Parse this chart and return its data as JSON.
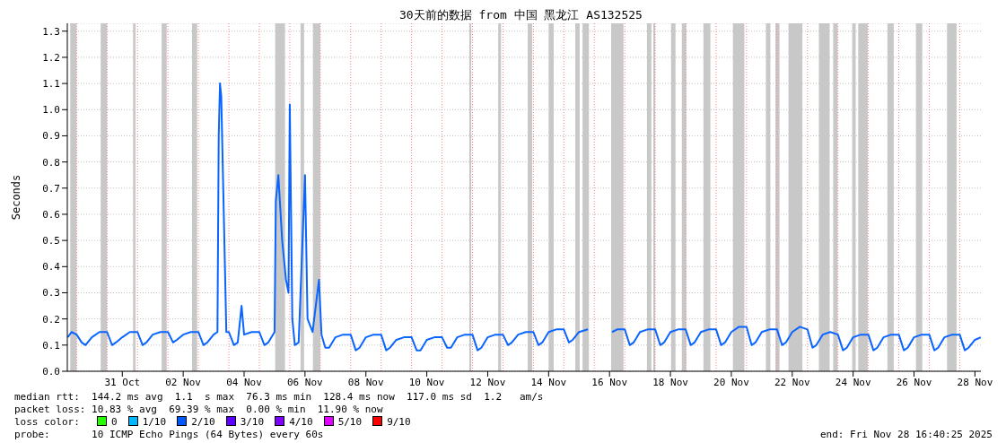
{
  "chart_data": {
    "type": "line",
    "title": "30天前的数据 from 中国 黑龙江 AS132525",
    "ylabel": "Seconds",
    "xlim": [
      "2025-10-29T16:40",
      "2025-11-28T16:40"
    ],
    "xticks": [
      {
        "value": "2025-10-31T12:00",
        "label": "31 Oct"
      },
      {
        "value": "2025-11-02T12:00",
        "label": "02 Nov"
      },
      {
        "value": "2025-11-04T12:00",
        "label": "04 Nov"
      },
      {
        "value": "2025-11-06T12:00",
        "label": "06 Nov"
      },
      {
        "value": "2025-11-08T12:00",
        "label": "08 Nov"
      },
      {
        "value": "2025-11-10T12:00",
        "label": "10 Nov"
      },
      {
        "value": "2025-11-12T12:00",
        "label": "12 Nov"
      },
      {
        "value": "2025-11-14T12:00",
        "label": "14 Nov"
      },
      {
        "value": "2025-11-16T12:00",
        "label": "16 Nov"
      },
      {
        "value": "2025-11-18T12:00",
        "label": "18 Nov"
      },
      {
        "value": "2025-11-20T12:00",
        "label": "20 Nov"
      },
      {
        "value": "2025-11-22T12:00",
        "label": "22 Nov"
      },
      {
        "value": "2025-11-24T12:00",
        "label": "24 Nov"
      },
      {
        "value": "2025-11-26T12:00",
        "label": "26 Nov"
      },
      {
        "value": "2025-11-28T12:00",
        "label": "28 Nov"
      }
    ],
    "ylim": [
      0,
      1.33
    ],
    "yticks": [
      {
        "value": 0,
        "label": "0.0"
      },
      {
        "value": 0.1,
        "label": "0.1"
      },
      {
        "value": 0.2,
        "label": "0.2"
      },
      {
        "value": 0.3,
        "label": "0.3"
      },
      {
        "value": 0.4,
        "label": "0.4"
      },
      {
        "value": 0.5,
        "label": "0.5"
      },
      {
        "value": 0.6,
        "label": "0.6"
      },
      {
        "value": 0.7,
        "label": "0.7"
      },
      {
        "value": 0.8,
        "label": "0.8"
      },
      {
        "value": 0.9,
        "label": "0.9"
      },
      {
        "value": 1.0,
        "label": "1.0"
      },
      {
        "value": 1.1,
        "label": "1.1"
      },
      {
        "value": 1.2,
        "label": "1.2"
      },
      {
        "value": 1.3,
        "label": "1.3"
      }
    ],
    "grid": "y",
    "series": [
      {
        "color": "#0a64ff",
        "x": [
          "2025-10-29T17:00",
          "2025-10-29T20:00",
          "2025-10-30T00:00",
          "2025-10-30T04:00",
          "2025-10-30T07:00",
          "2025-10-30T12:00",
          "2025-10-30T18:00",
          "2025-10-31T00:00",
          "2025-10-31T04:00",
          "2025-10-31T07:00",
          "2025-10-31T12:00",
          "2025-10-31T18:00",
          "2025-11-01T00:00",
          "2025-11-01T04:00",
          "2025-11-01T07:00",
          "2025-11-01T12:00",
          "2025-11-01T18:00",
          "2025-11-02T00:00",
          "2025-11-02T04:00",
          "2025-11-02T07:00",
          "2025-11-02T12:00",
          "2025-11-02T18:00",
          "2025-11-03T00:00",
          "2025-11-03T04:00",
          "2025-11-03T07:00",
          "2025-11-03T12:00",
          "2025-11-03T15:00",
          "2025-11-03T16:00",
          "2025-11-03T17:00",
          "2025-11-03T18:00",
          "2025-11-03T20:00",
          "2025-11-03T22:00",
          "2025-11-04T00:00",
          "2025-11-04T04:00",
          "2025-11-04T07:00",
          "2025-11-04T10:00",
          "2025-11-04T12:00",
          "2025-11-04T18:00",
          "2025-11-05T00:00",
          "2025-11-05T04:00",
          "2025-11-05T07:00",
          "2025-11-05T12:00",
          "2025-11-05T13:00",
          "2025-11-05T15:00",
          "2025-11-05T18:00",
          "2025-11-05T21:00",
          "2025-11-05T23:00",
          "2025-11-06T00:00",
          "2025-11-06T02:00",
          "2025-11-06T04:00",
          "2025-11-06T07:00",
          "2025-11-06T12:00",
          "2025-11-06T14:00",
          "2025-11-06T18:00",
          "2025-11-06T23:00",
          "2025-11-07T01:00",
          "2025-11-07T04:00",
          "2025-11-07T07:00",
          "2025-11-07T12:00",
          "2025-11-07T18:00",
          "2025-11-08T00:00",
          "2025-11-08T04:00",
          "2025-11-08T07:00",
          "2025-11-08T12:00",
          "2025-11-08T18:00",
          "2025-11-09T00:00",
          "2025-11-09T04:00",
          "2025-11-09T07:00",
          "2025-11-09T12:00",
          "2025-11-09T18:00",
          "2025-11-10T00:00",
          "2025-11-10T04:00",
          "2025-11-10T07:00",
          "2025-11-10T12:00",
          "2025-11-10T18:00",
          "2025-11-11T00:00",
          "2025-11-11T04:00",
          "2025-11-11T07:00",
          "2025-11-11T12:00",
          "2025-11-11T18:00",
          "2025-11-12T00:00",
          "2025-11-12T04:00",
          "2025-11-12T07:00",
          "2025-11-12T12:00",
          "2025-11-12T18:00",
          "2025-11-13T00:00",
          "2025-11-13T04:00",
          "2025-11-13T07:00",
          "2025-11-13T12:00",
          "2025-11-13T18:00",
          "2025-11-14T00:00",
          "2025-11-14T04:00",
          "2025-11-14T07:00",
          "2025-11-14T12:00",
          "2025-11-14T18:00",
          "2025-11-15T00:00",
          "2025-11-15T04:00",
          "2025-11-15T07:00",
          "2025-11-15T12:00",
          "2025-11-15T19:00",
          "2025-11-16T00:00",
          "2025-11-16T14:00",
          "2025-11-16T18:00",
          "2025-11-17T00:00",
          "2025-11-17T04:00",
          "2025-11-17T07:00",
          "2025-11-17T12:00",
          "2025-11-17T18:00",
          "2025-11-18T00:00",
          "2025-11-18T04:00",
          "2025-11-18T07:00",
          "2025-11-18T12:00",
          "2025-11-18T18:00",
          "2025-11-19T00:00",
          "2025-11-19T04:00",
          "2025-11-19T07:00",
          "2025-11-19T12:00",
          "2025-11-19T18:00",
          "2025-11-20T00:00",
          "2025-11-20T04:00",
          "2025-11-20T07:00",
          "2025-11-20T12:00",
          "2025-11-20T18:00",
          "2025-11-21T00:00",
          "2025-11-21T04:00",
          "2025-11-21T07:00",
          "2025-11-21T12:00",
          "2025-11-21T18:00",
          "2025-11-22T00:00",
          "2025-11-22T04:00",
          "2025-11-22T07:00",
          "2025-11-22T12:00",
          "2025-11-22T18:00",
          "2025-11-23T00:00",
          "2025-11-23T04:00",
          "2025-11-23T07:00",
          "2025-11-23T12:00",
          "2025-11-23T18:00",
          "2025-11-24T00:00",
          "2025-11-24T04:00",
          "2025-11-24T07:00",
          "2025-11-24T12:00",
          "2025-11-24T18:00",
          "2025-11-25T00:00",
          "2025-11-25T04:00",
          "2025-11-25T07:00",
          "2025-11-25T12:00",
          "2025-11-25T18:00",
          "2025-11-26T00:00",
          "2025-11-26T04:00",
          "2025-11-26T07:00",
          "2025-11-26T12:00",
          "2025-11-26T18:00",
          "2025-11-27T00:00",
          "2025-11-27T04:00",
          "2025-11-27T07:00",
          "2025-11-27T12:00",
          "2025-11-27T18:00",
          "2025-11-28T00:00",
          "2025-11-28T04:00",
          "2025-11-28T07:00",
          "2025-11-28T12:00",
          "2025-11-28T16:40"
        ],
        "values": [
          0.13,
          0.15,
          0.14,
          0.11,
          0.1,
          0.13,
          0.15,
          0.15,
          0.1,
          0.11,
          0.13,
          0.15,
          0.15,
          0.1,
          0.11,
          0.14,
          0.15,
          0.15,
          0.11,
          0.12,
          0.14,
          0.15,
          0.15,
          0.1,
          0.11,
          0.14,
          0.15,
          0.9,
          1.1,
          1.05,
          0.6,
          0.15,
          0.15,
          0.1,
          0.11,
          0.25,
          0.14,
          0.15,
          0.15,
          0.1,
          0.11,
          0.15,
          0.65,
          0.75,
          0.5,
          0.35,
          0.3,
          1.02,
          0.2,
          0.1,
          0.11,
          0.75,
          0.2,
          0.15,
          0.35,
          0.14,
          0.09,
          0.09,
          0.13,
          0.14,
          0.14,
          0.08,
          0.09,
          0.13,
          0.14,
          0.14,
          0.08,
          0.09,
          0.12,
          0.13,
          0.13,
          0.08,
          0.08,
          0.12,
          0.13,
          0.13,
          0.09,
          0.09,
          0.13,
          0.14,
          0.14,
          0.08,
          0.09,
          0.13,
          0.14,
          0.14,
          0.1,
          0.11,
          0.14,
          0.15,
          0.15,
          0.1,
          0.11,
          0.15,
          0.16,
          0.16,
          0.11,
          0.12,
          0.15,
          0.16,
          null,
          0.15,
          0.16,
          0.16,
          0.1,
          0.11,
          0.15,
          0.16,
          0.16,
          0.1,
          0.11,
          0.15,
          0.16,
          0.16,
          0.1,
          0.11,
          0.15,
          0.16,
          0.16,
          0.1,
          0.11,
          0.15,
          0.17,
          0.17,
          0.1,
          0.11,
          0.15,
          0.16,
          0.16,
          0.1,
          0.11,
          0.15,
          0.17,
          0.16,
          0.09,
          0.1,
          0.14,
          0.15,
          0.14,
          0.08,
          0.09,
          0.13,
          0.14,
          0.14,
          0.08,
          0.09,
          0.13,
          0.14,
          0.14,
          0.08,
          0.09,
          0.13,
          0.14,
          0.14,
          0.08,
          0.09,
          0.13,
          0.14,
          0.14,
          0.08,
          0.09,
          0.12,
          0.13
        ]
      }
    ],
    "bands": [
      {
        "axis": "x",
        "from": "2025-10-29T19:00",
        "to": "2025-10-30T00:00",
        "color": "#c8c8c8"
      },
      {
        "axis": "x",
        "from": "2025-10-30T19:00",
        "to": "2025-10-31T00:00",
        "color": "#c8c8c8"
      },
      {
        "axis": "x",
        "from": "2025-10-31T20:30",
        "to": "2025-10-31T22:30",
        "color": "#c8c8c8"
      },
      {
        "axis": "x",
        "from": "2025-11-01T19:00",
        "to": "2025-11-01T23:00",
        "color": "#c8c8c8"
      },
      {
        "axis": "x",
        "from": "2025-11-02T19:00",
        "to": "2025-11-02T23:00",
        "color": "#c8c8c8"
      },
      {
        "axis": "x",
        "from": "2025-11-05T12:30",
        "to": "2025-11-05T20:15",
        "color": "#c8c8c8"
      },
      {
        "axis": "x",
        "from": "2025-11-06T08:30",
        "to": "2025-11-06T11:15",
        "color": "#c8c8c8"
      },
      {
        "axis": "x",
        "from": "2025-11-06T18:15",
        "to": "2025-11-07T00:00",
        "color": "#c8c8c8"
      },
      {
        "axis": "x",
        "from": "2025-11-11T21:30",
        "to": "2025-11-11T23:00",
        "color": "#c8c8c8"
      },
      {
        "axis": "x",
        "from": "2025-11-12T20:15",
        "to": "2025-11-12T22:30",
        "color": "#c8c8c8"
      },
      {
        "axis": "x",
        "from": "2025-11-13T19:30",
        "to": "2025-11-13T23:00",
        "color": "#c8c8c8"
      },
      {
        "axis": "x",
        "from": "2025-11-14T12:00",
        "to": "2025-11-14T16:00",
        "color": "#c8c8c8"
      },
      {
        "axis": "x",
        "from": "2025-11-15T09:00",
        "to": "2025-11-15T12:30",
        "color": "#c8c8c8"
      },
      {
        "axis": "x",
        "from": "2025-11-15T14:45",
        "to": "2025-11-15T19:45",
        "color": "#c8c8c8"
      },
      {
        "axis": "x",
        "from": "2025-11-16T13:15",
        "to": "2025-11-16T23:00",
        "color": "#c8c8c8"
      },
      {
        "axis": "x",
        "from": "2025-11-17T17:30",
        "to": "2025-11-17T21:00",
        "color": "#c8c8c8"
      },
      {
        "axis": "x",
        "from": "2025-11-17T22:30",
        "to": "2025-11-18T00:00",
        "color": "#c8c8c8"
      },
      {
        "axis": "x",
        "from": "2025-11-18T12:30",
        "to": "2025-11-18T16:00",
        "color": "#c8c8c8"
      },
      {
        "axis": "x",
        "from": "2025-11-18T21:00",
        "to": "2025-11-19T00:30",
        "color": "#c8c8c8"
      },
      {
        "axis": "x",
        "from": "2025-11-19T14:00",
        "to": "2025-11-19T19:30",
        "color": "#c8c8c8"
      },
      {
        "axis": "x",
        "from": "2025-11-20T13:15",
        "to": "2025-11-20T22:15",
        "color": "#c8c8c8"
      },
      {
        "axis": "x",
        "from": "2025-11-21T15:15",
        "to": "2025-11-21T18:45",
        "color": "#c8c8c8"
      },
      {
        "axis": "x",
        "from": "2025-11-21T22:45",
        "to": "2025-11-22T02:00",
        "color": "#c8c8c8"
      },
      {
        "axis": "x",
        "from": "2025-11-22T09:00",
        "to": "2025-11-22T20:00",
        "color": "#c8c8c8"
      },
      {
        "axis": "x",
        "from": "2025-11-23T09:00",
        "to": "2025-11-23T17:30",
        "color": "#c8c8c8"
      },
      {
        "axis": "x",
        "from": "2025-11-23T20:15",
        "to": "2025-11-23T23:45",
        "color": "#c8c8c8"
      },
      {
        "axis": "x",
        "from": "2025-11-24T11:15",
        "to": "2025-11-24T14:00",
        "color": "#c8c8c8"
      },
      {
        "axis": "x",
        "from": "2025-11-24T16:00",
        "to": "2025-11-24T23:30",
        "color": "#c8c8c8"
      },
      {
        "axis": "x",
        "from": "2025-11-25T15:00",
        "to": "2025-11-25T20:00",
        "color": "#c8c8c8"
      },
      {
        "axis": "x",
        "from": "2025-11-26T13:30",
        "to": "2025-11-26T18:30",
        "color": "#c8c8c8"
      },
      {
        "axis": "x",
        "from": "2025-11-27T14:00",
        "to": "2025-11-27T21:30",
        "color": "#c8c8c8"
      }
    ],
    "ref_lines": [
      {
        "axis": "x",
        "value": "2025-10-30T00:00",
        "color": "#ff8080",
        "line_style": "dotted"
      },
      {
        "axis": "x",
        "value": "2025-10-31T00:00",
        "color": "#ff8080",
        "line_style": "dotted"
      },
      {
        "axis": "x",
        "value": "2025-11-01T00:00",
        "color": "#ff8080",
        "line_style": "dotted"
      },
      {
        "axis": "x",
        "value": "2025-11-02T00:00",
        "color": "#ff8080",
        "line_style": "dotted"
      },
      {
        "axis": "x",
        "value": "2025-11-03T00:00",
        "color": "#ff8080",
        "line_style": "dotted"
      },
      {
        "axis": "x",
        "value": "2025-11-04T00:00",
        "color": "#ff8080",
        "line_style": "dotted"
      },
      {
        "axis": "x",
        "value": "2025-11-05T00:00",
        "color": "#ff8080",
        "line_style": "dotted"
      },
      {
        "axis": "x",
        "value": "2025-11-06T00:00",
        "color": "#ff8080",
        "line_style": "dotted"
      },
      {
        "axis": "x",
        "value": "2025-11-07T00:00",
        "color": "#ff8080",
        "line_style": "dotted"
      },
      {
        "axis": "x",
        "value": "2025-11-08T00:00",
        "color": "#ff8080",
        "line_style": "dotted"
      },
      {
        "axis": "x",
        "value": "2025-11-09T00:00",
        "color": "#ff8080",
        "line_style": "dotted"
      },
      {
        "axis": "x",
        "value": "2025-11-10T00:00",
        "color": "#ff8080",
        "line_style": "dotted"
      },
      {
        "axis": "x",
        "value": "2025-11-11T00:00",
        "color": "#ff8080",
        "line_style": "dotted"
      },
      {
        "axis": "x",
        "value": "2025-11-12T00:00",
        "color": "#ff8080",
        "line_style": "dotted"
      },
      {
        "axis": "x",
        "value": "2025-11-13T00:00",
        "color": "#ff8080",
        "line_style": "dotted"
      },
      {
        "axis": "x",
        "value": "2025-11-14T00:00",
        "color": "#ff8080",
        "line_style": "dotted"
      },
      {
        "axis": "x",
        "value": "2025-11-15T00:00",
        "color": "#ff8080",
        "line_style": "dotted"
      },
      {
        "axis": "x",
        "value": "2025-11-16T00:00",
        "color": "#ff8080",
        "line_style": "dotted"
      },
      {
        "axis": "x",
        "value": "2025-11-17T00:00",
        "color": "#ff8080",
        "line_style": "dotted"
      },
      {
        "axis": "x",
        "value": "2025-11-18T00:00",
        "color": "#ff8080",
        "line_style": "dotted"
      },
      {
        "axis": "x",
        "value": "2025-11-19T00:00",
        "color": "#ff8080",
        "line_style": "dotted"
      },
      {
        "axis": "x",
        "value": "2025-11-20T00:00",
        "color": "#ff8080",
        "line_style": "dotted"
      },
      {
        "axis": "x",
        "value": "2025-11-21T00:00",
        "color": "#ff8080",
        "line_style": "dotted"
      },
      {
        "axis": "x",
        "value": "2025-11-22T00:00",
        "color": "#ff8080",
        "line_style": "dotted"
      },
      {
        "axis": "x",
        "value": "2025-11-23T00:00",
        "color": "#ff8080",
        "line_style": "dotted"
      },
      {
        "axis": "x",
        "value": "2025-11-24T00:00",
        "color": "#ff8080",
        "line_style": "dotted"
      },
      {
        "axis": "x",
        "value": "2025-11-25T00:00",
        "color": "#ff8080",
        "line_style": "dotted"
      },
      {
        "axis": "x",
        "value": "2025-11-26T00:00",
        "color": "#ff8080",
        "line_style": "dotted"
      },
      {
        "axis": "x",
        "value": "2025-11-27T00:00",
        "color": "#ff8080",
        "line_style": "dotted"
      },
      {
        "axis": "x",
        "value": "2025-11-28T00:00",
        "color": "#ff8080",
        "line_style": "dotted"
      }
    ],
    "annotations": [
      "median rtt:  144.2 ms avg  1.1  s max  76.3 ms min  128.4 ms now  117.0 ms sd  1.2   am/s",
      "packet loss: 10.83 % avg  69.39 % max  0.00 % min  11.90 % now",
      "loss color:",
      "0",
      "1/10",
      "2/10",
      "3/10",
      "4/10",
      "5/10",
      "9/10",
      "probe:       10 ICMP Echo Pings (64 Bytes) every 60s",
      "end: Fri Nov 28 16:40:25 2025"
    ]
  }
}
